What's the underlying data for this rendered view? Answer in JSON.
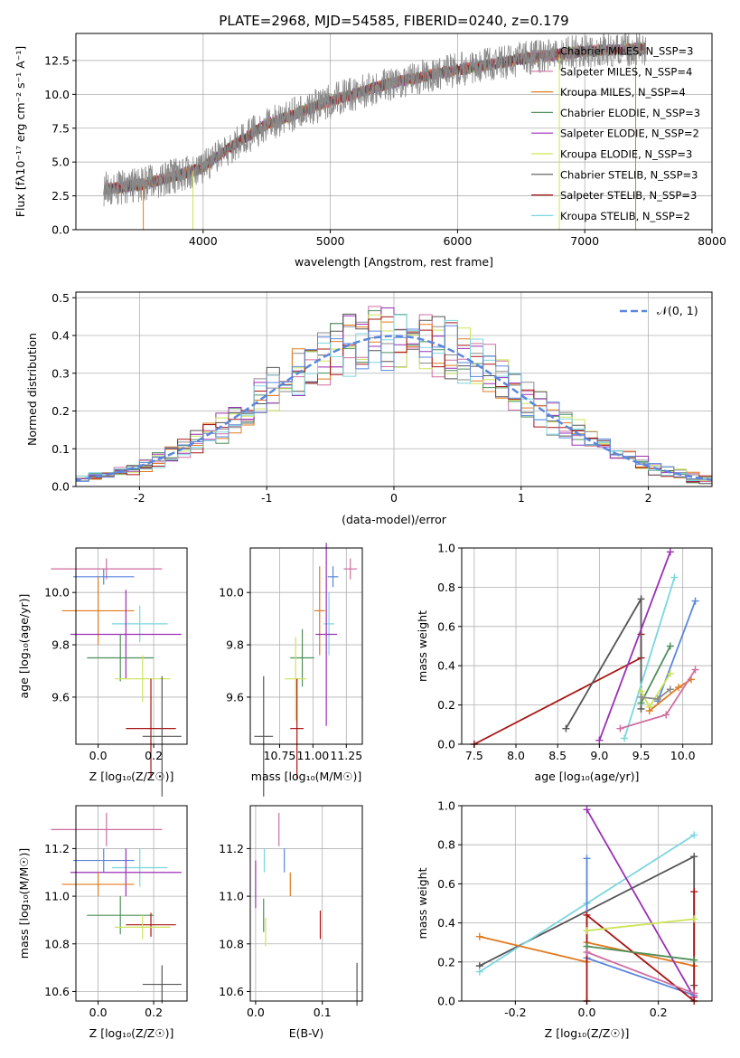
{
  "colors": {
    "Chabrier MILES": "#8a8a8a",
    "Salpeter MILES": "#d06ea0",
    "Kroupa MILES": "#e07a1f",
    "Chabrier ELODIE": "#4e8f5a",
    "Salpeter ELODIE": "#9a2fb4",
    "Kroupa ELODIE": "#cde35a",
    "Chabrier STELIB": "#555555",
    "Salpeter STELIB": "#a81414",
    "Kroupa STELIB": "#7bd6df",
    "blue": "#5a86dd",
    "pink": "#e67fc0"
  },
  "chart_data": [
    {
      "id": "spectrum",
      "type": "line",
      "title": "PLATE=2968, MJD=54585, FIBERID=0240, z=0.179",
      "xlabel": "wavelength [Angstrom, rest frame]",
      "ylabel": "Flux [fλ10⁻¹⁷ erg cm⁻² s⁻¹ A⁻¹]",
      "xlim": [
        3000,
        8000
      ],
      "ylim": [
        0,
        14.5
      ],
      "xticks": [
        4000,
        5000,
        6000,
        7000,
        8000
      ],
      "yticks": [
        0.0,
        2.5,
        5.0,
        7.5,
        10.0,
        12.5
      ],
      "legend_position": "right",
      "legend": [
        "Chabrier MILES, N_SSP=3",
        "Salpeter MILES, N_SSP=4",
        "Kroupa MILES, N_SSP=4",
        "Chabrier ELODIE, N_SSP=3",
        "Salpeter ELODIE, N_SSP=2",
        "Kroupa ELODIE, N_SSP=3",
        "Chabrier STELIB, N_SSP=3",
        "Salpeter STELIB, N_SSP=3",
        "Kroupa STELIB, N_SSP=2"
      ],
      "data_range_x": [
        3220,
        7480
      ],
      "continuum": [
        [
          3220,
          3.0
        ],
        [
          3500,
          3.3
        ],
        [
          3800,
          4.0
        ],
        [
          4000,
          4.6
        ],
        [
          4200,
          6.0
        ],
        [
          4500,
          7.8
        ],
        [
          5000,
          9.5
        ],
        [
          5500,
          10.9
        ],
        [
          6000,
          11.8
        ],
        [
          6500,
          12.6
        ],
        [
          7000,
          13.2
        ],
        [
          7480,
          13.4
        ]
      ],
      "model_cutoffs_x": [
        3530,
        3920,
        6800,
        7400
      ]
    },
    {
      "id": "residuals",
      "type": "step-histogram",
      "xlabel": "(data-model)/error",
      "ylabel": "Normed distribution",
      "xlim": [
        -2.5,
        2.5
      ],
      "ylim": [
        0,
        0.515
      ],
      "xticks": [
        -2,
        -1,
        0,
        1,
        2
      ],
      "yticks": [
        0.0,
        0.1,
        0.2,
        0.3,
        0.4,
        0.5
      ],
      "legend": "𝒩(0, 1)",
      "legend_position": "top-right",
      "reference_curve": "standard normal pdf",
      "bin_width": 0.1
    },
    {
      "id": "age_vs_Z",
      "type": "errorbar",
      "xlabel": "Z [log₁₀(Z/Z☉)]",
      "ylabel": "age  [log₁₀(age/yr)]",
      "xlim": [
        -0.08,
        0.32
      ],
      "ylim": [
        9.42,
        10.17
      ],
      "xticks": [
        0.0,
        0.2
      ],
      "yticks": [
        9.6,
        9.8,
        10.0
      ],
      "points": [
        {
          "series": "Salpeter MILES",
          "x": 0.03,
          "y": 10.09,
          "xerr": 0.2,
          "yerr": 0.04
        },
        {
          "series": "blue",
          "x": 0.02,
          "y": 10.06,
          "xerr": 0.11,
          "yerr": 0.03
        },
        {
          "series": "Kroupa MILES",
          "x": 0.0,
          "y": 9.93,
          "xerr": 0.13,
          "yerr": 0.13
        },
        {
          "series": "Kroupa STELIB",
          "x": 0.15,
          "y": 9.88,
          "xerr": 0.1,
          "yerr": 0.07
        },
        {
          "series": "Salpeter ELODIE",
          "x": 0.1,
          "y": 9.84,
          "xerr": 0.2,
          "yerr": 0.17
        },
        {
          "series": "Chabrier ELODIE",
          "x": 0.08,
          "y": 9.75,
          "xerr": 0.12,
          "yerr": 0.09
        },
        {
          "series": "Kroupa ELODIE",
          "x": 0.16,
          "y": 9.67,
          "xerr": 0.1,
          "yerr": 0.09
        },
        {
          "series": "Salpeter STELIB",
          "x": 0.19,
          "y": 9.48,
          "xerr": 0.09,
          "yerr": 0.19
        },
        {
          "series": "Chabrier STELIB",
          "x": 0.23,
          "y": 9.45,
          "xerr": 0.07,
          "yerr": 0.23
        }
      ]
    },
    {
      "id": "age_vs_mass",
      "type": "errorbar",
      "xlabel": "mass [log₁₀(M/M☉)]",
      "ylabel": "",
      "xlim": [
        10.53,
        11.37
      ],
      "ylim": [
        9.42,
        10.17
      ],
      "xticks": [
        10.75,
        11.0,
        11.25
      ],
      "yticks": [
        9.6,
        9.8,
        10.0
      ],
      "points": [
        {
          "series": "Salpeter MILES",
          "x": 11.28,
          "y": 10.09,
          "xerr": 0.05,
          "yerr": 0.04
        },
        {
          "series": "blue",
          "x": 11.15,
          "y": 10.06,
          "xerr": 0.04,
          "yerr": 0.04
        },
        {
          "series": "Kroupa MILES",
          "x": 11.05,
          "y": 9.93,
          "xerr": 0.04,
          "yerr": 0.17
        },
        {
          "series": "Kroupa STELIB",
          "x": 11.12,
          "y": 9.88,
          "xerr": 0.04,
          "yerr": 0.12
        },
        {
          "series": "Salpeter ELODIE",
          "x": 11.1,
          "y": 9.84,
          "xerr": 0.08,
          "yerr": 0.35
        },
        {
          "series": "Chabrier ELODIE",
          "x": 10.92,
          "y": 9.75,
          "xerr": 0.09,
          "yerr": 0.11
        },
        {
          "series": "Kroupa ELODIE",
          "x": 10.87,
          "y": 9.67,
          "xerr": 0.08,
          "yerr": 0.16
        },
        {
          "series": "Salpeter STELIB",
          "x": 10.88,
          "y": 9.48,
          "xerr": 0.05,
          "yerr": 0.19
        },
        {
          "series": "Chabrier STELIB",
          "x": 10.63,
          "y": 9.45,
          "xerr": 0.07,
          "yerr": 0.23
        }
      ]
    },
    {
      "id": "weight_vs_age",
      "type": "line",
      "xlabel": "age  [log₁₀(age/yr)]",
      "ylabel": "mass weight",
      "xlim": [
        7.35,
        10.35
      ],
      "ylim": [
        0,
        1.0
      ],
      "xticks": [
        7.5,
        8.0,
        8.5,
        9.0,
        9.5,
        10.0
      ],
      "yticks": [
        0.0,
        0.2,
        0.4,
        0.6,
        0.8,
        1.0
      ],
      "series": [
        {
          "series": "Salpeter STELIB",
          "x": [
            7.5,
            9.5,
            9.5
          ],
          "y": [
            0.0,
            0.44,
            0.56
          ]
        },
        {
          "series": "Chabrier STELIB",
          "x": [
            8.6,
            9.5,
            9.5
          ],
          "y": [
            0.08,
            0.74,
            0.18
          ]
        },
        {
          "series": "Salpeter ELODIE",
          "x": [
            9.0,
            9.85
          ],
          "y": [
            0.02,
            0.98
          ]
        },
        {
          "series": "Kroupa STELIB",
          "x": [
            9.3,
            9.9
          ],
          "y": [
            0.03,
            0.85
          ]
        },
        {
          "series": "blue",
          "x": [
            9.7,
            10.15
          ],
          "y": [
            0.22,
            0.73
          ]
        },
        {
          "series": "Chabrier ELODIE",
          "x": [
            9.5,
            9.85
          ],
          "y": [
            0.21,
            0.5
          ]
        },
        {
          "series": "Kroupa ELODIE",
          "x": [
            9.5,
            9.6,
            9.85
          ],
          "y": [
            0.27,
            0.19,
            0.36
          ]
        },
        {
          "series": "Kroupa MILES",
          "x": [
            9.6,
            9.95,
            10.1
          ],
          "y": [
            0.17,
            0.29,
            0.33
          ]
        },
        {
          "series": "Salpeter MILES",
          "x": [
            9.25,
            9.8,
            10.15
          ],
          "y": [
            0.08,
            0.15,
            0.38
          ]
        },
        {
          "series": "Chabrier MILES",
          "x": [
            9.5,
            9.7,
            9.85
          ],
          "y": [
            0.24,
            0.23,
            0.28
          ]
        }
      ]
    },
    {
      "id": "mass_vs_Z",
      "type": "errorbar",
      "xlabel": "Z [log₁₀(Z/Z☉)]",
      "ylabel": "mass [log₁₀(M/M☉)]",
      "xlim": [
        -0.08,
        0.32
      ],
      "ylim": [
        10.56,
        11.38
      ],
      "xticks": [
        0.0,
        0.2
      ],
      "yticks": [
        10.6,
        10.8,
        11.0,
        11.2
      ],
      "points": [
        {
          "series": "Salpeter MILES",
          "x": 0.03,
          "y": 11.28,
          "xerr": 0.2,
          "yerr": 0.07
        },
        {
          "series": "blue",
          "x": 0.02,
          "y": 11.15,
          "xerr": 0.11,
          "yerr": 0.05
        },
        {
          "series": "Kroupa STELIB",
          "x": 0.15,
          "y": 11.12,
          "xerr": 0.1,
          "yerr": 0.08
        },
        {
          "series": "Salpeter ELODIE",
          "x": 0.1,
          "y": 11.1,
          "xerr": 0.2,
          "yerr": 0.1
        },
        {
          "series": "Kroupa MILES",
          "x": 0.0,
          "y": 11.05,
          "xerr": 0.13,
          "yerr": 0.05
        },
        {
          "series": "Chabrier ELODIE",
          "x": 0.08,
          "y": 10.92,
          "xerr": 0.12,
          "yerr": 0.08
        },
        {
          "series": "Salpeter STELIB",
          "x": 0.19,
          "y": 10.88,
          "xerr": 0.09,
          "yerr": 0.05
        },
        {
          "series": "Kroupa ELODIE",
          "x": 0.16,
          "y": 10.87,
          "xerr": 0.1,
          "yerr": 0.05
        },
        {
          "series": "Chabrier STELIB",
          "x": 0.23,
          "y": 10.63,
          "xerr": 0.07,
          "yerr": 0.08
        }
      ]
    },
    {
      "id": "mass_vs_ebv",
      "type": "errorbar",
      "xlabel": "E(B-V)",
      "ylabel": "",
      "xlim": [
        -0.008,
        0.16
      ],
      "ylim": [
        10.56,
        11.38
      ],
      "xticks": [
        0.0,
        0.1
      ],
      "yticks": [
        10.6,
        10.8,
        11.0,
        11.2
      ],
      "points": [
        {
          "series": "Salpeter MILES",
          "x": 0.035,
          "y": 11.28,
          "xerr": 0,
          "yerr": 0.07
        },
        {
          "series": "Kroupa STELIB",
          "x": 0.013,
          "y": 11.15,
          "xerr": 0,
          "yerr": 0.05
        },
        {
          "series": "blue",
          "x": 0.043,
          "y": 11.15,
          "xerr": 0,
          "yerr": 0.05
        },
        {
          "series": "Salpeter ELODIE",
          "x": 0.0,
          "y": 11.05,
          "xerr": 0,
          "yerr": 0.1
        },
        {
          "series": "Kroupa MILES",
          "x": 0.052,
          "y": 11.05,
          "xerr": 0,
          "yerr": 0.05
        },
        {
          "series": "Chabrier ELODIE",
          "x": 0.012,
          "y": 10.92,
          "xerr": 0,
          "yerr": 0.07
        },
        {
          "series": "Salpeter STELIB",
          "x": 0.097,
          "y": 10.88,
          "xerr": 0,
          "yerr": 0.06
        },
        {
          "series": "Kroupa ELODIE",
          "x": 0.015,
          "y": 10.85,
          "xerr": 0,
          "yerr": 0.06
        },
        {
          "series": "Chabrier STELIB",
          "x": 0.152,
          "y": 10.63,
          "xerr": 0,
          "yerr": 0.09
        }
      ]
    },
    {
      "id": "weight_vs_Z",
      "type": "line",
      "xlabel": "Z [log₁₀(Z/Z☉)]",
      "ylabel": "mass weight",
      "xlim": [
        -0.35,
        0.35
      ],
      "ylim": [
        0,
        1.0
      ],
      "xticks": [
        -0.2,
        0.0,
        0.2
      ],
      "yticks": [
        0.0,
        0.2,
        0.4,
        0.6,
        0.8,
        1.0
      ],
      "series": [
        {
          "series": "Chabrier STELIB",
          "x": [
            -0.3,
            0.3,
            0.3
          ],
          "y": [
            0.18,
            0.74,
            0.08
          ]
        },
        {
          "series": "Kroupa STELIB",
          "x": [
            -0.3,
            0.0,
            0.3
          ],
          "y": [
            0.15,
            0.5,
            0.85
          ]
        },
        {
          "series": "Kroupa MILES",
          "x": [
            -0.3,
            0.0,
            0.0,
            0.3
          ],
          "y": [
            0.33,
            0.2,
            0.3,
            0.18
          ]
        },
        {
          "series": "Salpeter ELODIE",
          "x": [
            0.0,
            0.3
          ],
          "y": [
            0.98,
            0.02
          ]
        },
        {
          "series": "blue",
          "x": [
            0.0,
            0.0,
            0.3
          ],
          "y": [
            0.73,
            0.22,
            0.03
          ]
        },
        {
          "series": "Salpeter STELIB",
          "x": [
            0.0,
            0.0,
            0.3,
            0.3
          ],
          "y": [
            0.0,
            0.44,
            0.0,
            0.56
          ]
        },
        {
          "series": "Kroupa ELODIE",
          "x": [
            0.0,
            0.3
          ],
          "y": [
            0.36,
            0.42
          ]
        },
        {
          "series": "Chabrier ELODIE",
          "x": [
            0.0,
            0.3
          ],
          "y": [
            0.28,
            0.21
          ]
        },
        {
          "series": "Salpeter MILES",
          "x": [
            0.0,
            0.3
          ],
          "y": [
            0.25,
            0.04
          ]
        }
      ]
    }
  ]
}
